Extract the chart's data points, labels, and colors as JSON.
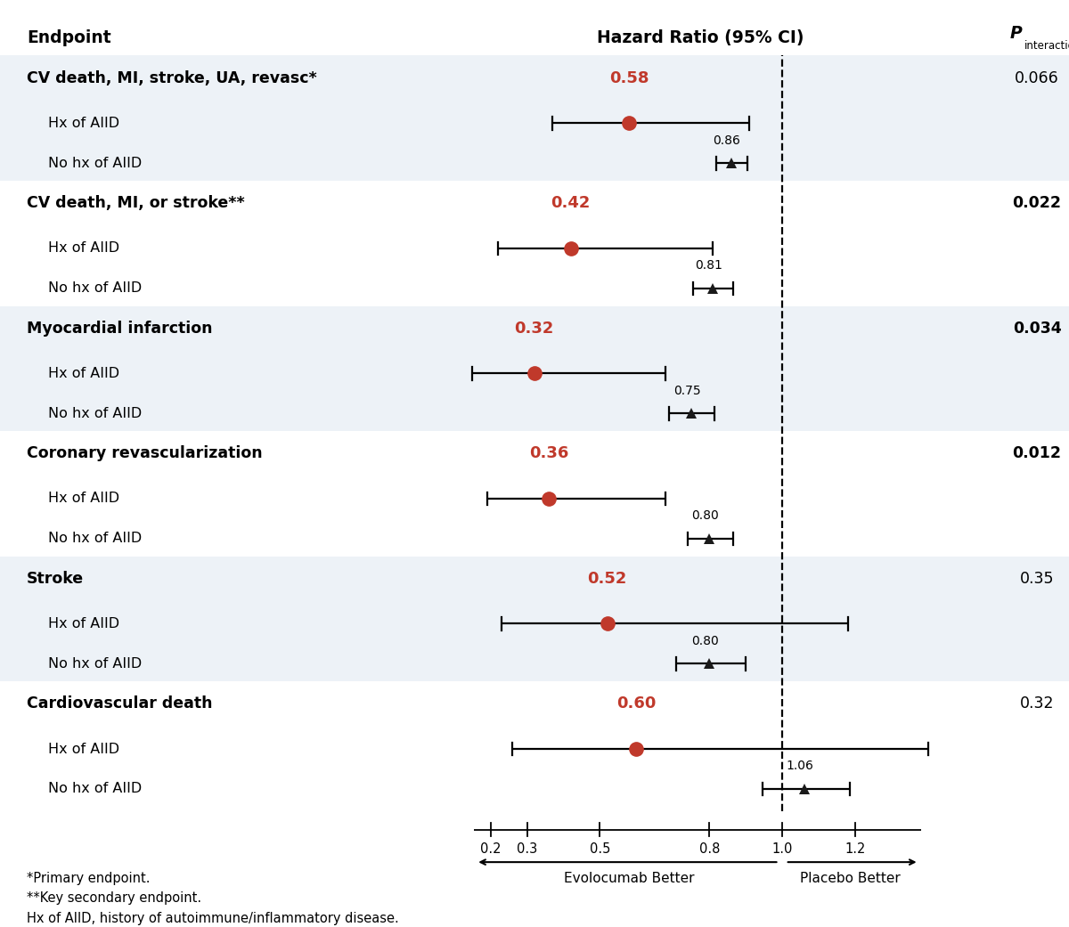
{
  "endpoints": [
    {
      "title": "CV death, MI, stroke, UA, revasc*",
      "p_interaction": "0.066",
      "p_bold": false,
      "hx_hr": 0.58,
      "hx_ci_lo": 0.37,
      "hx_ci_hi": 0.91,
      "no_hx_hr": 0.86,
      "no_hx_ci_lo": 0.82,
      "no_hx_ci_hi": 0.905,
      "bg_color": "#edf2f7"
    },
    {
      "title": "CV death, MI, or stroke**",
      "p_interaction": "0.022",
      "p_bold": true,
      "hx_hr": 0.42,
      "hx_ci_lo": 0.22,
      "hx_ci_hi": 0.81,
      "no_hx_hr": 0.81,
      "no_hx_ci_lo": 0.755,
      "no_hx_ci_hi": 0.865,
      "bg_color": "#ffffff"
    },
    {
      "title": "Myocardial infarction",
      "p_interaction": "0.034",
      "p_bold": true,
      "hx_hr": 0.32,
      "hx_ci_lo": 0.15,
      "hx_ci_hi": 0.68,
      "no_hx_hr": 0.75,
      "no_hx_ci_lo": 0.69,
      "no_hx_ci_hi": 0.815,
      "bg_color": "#edf2f7"
    },
    {
      "title": "Coronary revascularization",
      "p_interaction": "0.012",
      "p_bold": true,
      "hx_hr": 0.36,
      "hx_ci_lo": 0.19,
      "hx_ci_hi": 0.68,
      "no_hx_hr": 0.8,
      "no_hx_ci_lo": 0.74,
      "no_hx_ci_hi": 0.865,
      "bg_color": "#ffffff"
    },
    {
      "title": "Stroke",
      "p_interaction": "0.35",
      "p_bold": false,
      "hx_hr": 0.52,
      "hx_ci_lo": 0.23,
      "hx_ci_hi": 1.18,
      "no_hx_hr": 0.8,
      "no_hx_ci_lo": 0.71,
      "no_hx_ci_hi": 0.9,
      "bg_color": "#edf2f7"
    },
    {
      "title": "Cardiovascular death",
      "p_interaction": "0.32",
      "p_bold": false,
      "hx_hr": 0.6,
      "hx_ci_lo": 0.26,
      "hx_ci_hi": 1.4,
      "no_hx_hr": 1.06,
      "no_hx_ci_lo": 0.945,
      "no_hx_ci_hi": 1.185,
      "bg_color": "#ffffff"
    }
  ],
  "col_header_endpoint": "Endpoint",
  "col_header_hr": "Hazard Ratio (95% CI)",
  "col_header_p": "P",
  "col_header_p_sub": "interaction",
  "x_min": 0.13,
  "x_max": 1.42,
  "x_ticks": [
    0.2,
    0.3,
    0.5,
    0.8,
    1.0,
    1.2
  ],
  "dashed_line_x": 1.0,
  "arrow_left_label": "Evolocumab Better",
  "arrow_right_label": "Placebo Better",
  "footnote1": "*Primary endpoint.",
  "footnote2": "**Key secondary endpoint.",
  "footnote3": "Hx of AIID, history of autoimmune/inflammatory disease.",
  "hx_label": "Hx of AIID",
  "no_hx_label": "No hx of AIID",
  "circle_color": "#c0392b",
  "triangle_color": "#1a1a1a",
  "bg_alt": "#edf2f7",
  "bg_white": "#ffffff"
}
